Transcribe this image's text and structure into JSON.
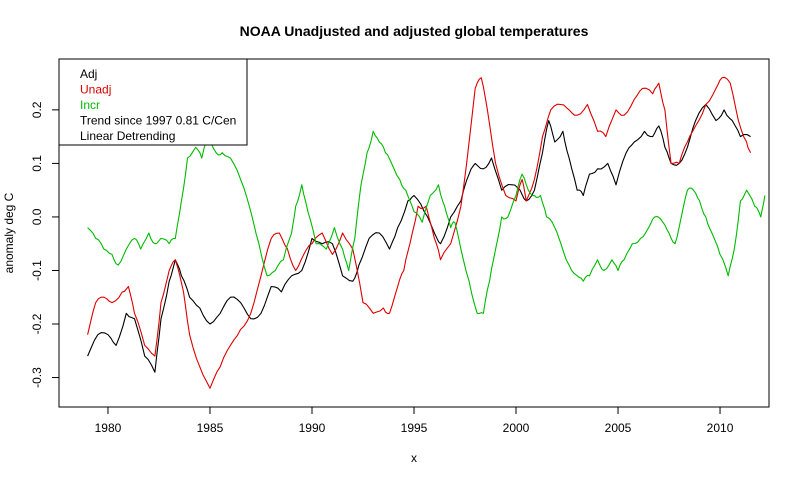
{
  "chart_data": {
    "type": "line",
    "title": "NOAA Unadjusted and adjusted global temperatures",
    "xlabel": "x",
    "ylabel": "anomaly deg C",
    "xlim": [
      1977.6,
      2012.4
    ],
    "ylim": [
      -0.355,
      0.295
    ],
    "x_ticks": [
      1980,
      1985,
      1990,
      1995,
      2000,
      2005,
      2010
    ],
    "x_tick_labels": [
      "1980",
      "1985",
      "1990",
      "1995",
      "2000",
      "2005",
      "2010"
    ],
    "y_ticks": [
      -0.3,
      -0.2,
      -0.1,
      0.0,
      0.1,
      0.2
    ],
    "y_tick_labels": [
      "-0.3",
      "-0.2",
      "-0.1",
      "0.0",
      "0.1",
      "0.2"
    ],
    "legend": {
      "position": "top-left",
      "entries": [
        {
          "label": "Adj",
          "color": "#000000"
        },
        {
          "label": "Unadj",
          "color": "#dd0000"
        },
        {
          "label": "Incr",
          "color": "#00bb00"
        },
        {
          "label": "Trend since 1997 0.81 C/Cen",
          "color": "#000000"
        },
        {
          "label": "Linear Detrending",
          "color": "#000000"
        }
      ]
    },
    "series": [
      {
        "name": "Adj",
        "color": "#000000",
        "points": [
          [
            1979.0,
            -0.26
          ],
          [
            1979.5,
            -0.22
          ],
          [
            1980.0,
            -0.22
          ],
          [
            1980.4,
            -0.24
          ],
          [
            1980.9,
            -0.18
          ],
          [
            1981.3,
            -0.19
          ],
          [
            1981.8,
            -0.26
          ],
          [
            1982.3,
            -0.29
          ],
          [
            1982.6,
            -0.19
          ],
          [
            1983.0,
            -0.12
          ],
          [
            1983.3,
            -0.08
          ],
          [
            1983.6,
            -0.11
          ],
          [
            1984.0,
            -0.15
          ],
          [
            1984.5,
            -0.17
          ],
          [
            1985.0,
            -0.2
          ],
          [
            1985.5,
            -0.18
          ],
          [
            1986.0,
            -0.15
          ],
          [
            1986.5,
            -0.16
          ],
          [
            1987.0,
            -0.19
          ],
          [
            1987.5,
            -0.18
          ],
          [
            1988.0,
            -0.13
          ],
          [
            1988.5,
            -0.14
          ],
          [
            1989.0,
            -0.11
          ],
          [
            1989.5,
            -0.1
          ],
          [
            1990.0,
            -0.04
          ],
          [
            1990.5,
            -0.05
          ],
          [
            1991.0,
            -0.05
          ],
          [
            1991.5,
            -0.11
          ],
          [
            1992.0,
            -0.12
          ],
          [
            1992.3,
            -0.09
          ],
          [
            1992.8,
            -0.04
          ],
          [
            1993.3,
            -0.03
          ],
          [
            1993.8,
            -0.06
          ],
          [
            1994.2,
            -0.02
          ],
          [
            1994.7,
            0.03
          ],
          [
            1995.0,
            0.04
          ],
          [
            1995.5,
            0.01
          ],
          [
            1996.0,
            -0.03
          ],
          [
            1996.3,
            -0.05
          ],
          [
            1996.8,
            0.0
          ],
          [
            1997.3,
            0.03
          ],
          [
            1997.7,
            0.08
          ],
          [
            1998.0,
            0.1
          ],
          [
            1998.4,
            0.09
          ],
          [
            1998.8,
            0.11
          ],
          [
            1999.3,
            0.05
          ],
          [
            1999.8,
            0.06
          ],
          [
            2000.2,
            0.05
          ],
          [
            2000.5,
            0.03
          ],
          [
            2000.9,
            0.05
          ],
          [
            2001.3,
            0.12
          ],
          [
            2001.6,
            0.18
          ],
          [
            2001.9,
            0.14
          ],
          [
            2002.3,
            0.16
          ],
          [
            2002.6,
            0.11
          ],
          [
            2003.0,
            0.05
          ],
          [
            2003.3,
            0.04
          ],
          [
            2003.6,
            0.08
          ],
          [
            2004.0,
            0.09
          ],
          [
            2004.5,
            0.1
          ],
          [
            2004.9,
            0.06
          ],
          [
            2005.4,
            0.12
          ],
          [
            2005.8,
            0.14
          ],
          [
            2006.3,
            0.16
          ],
          [
            2006.7,
            0.15
          ],
          [
            2007.0,
            0.17
          ],
          [
            2007.3,
            0.13
          ],
          [
            2007.6,
            0.1
          ],
          [
            2008.0,
            0.1
          ],
          [
            2008.4,
            0.13
          ],
          [
            2008.8,
            0.18
          ],
          [
            2009.3,
            0.21
          ],
          [
            2009.8,
            0.18
          ],
          [
            2010.2,
            0.2
          ],
          [
            2010.6,
            0.18
          ],
          [
            2011.0,
            0.15
          ],
          [
            2011.5,
            0.15
          ]
        ]
      },
      {
        "name": "Unadj",
        "color": "#dd0000",
        "points": [
          [
            1979.0,
            -0.22
          ],
          [
            1979.4,
            -0.16
          ],
          [
            1979.8,
            -0.15
          ],
          [
            1980.2,
            -0.16
          ],
          [
            1980.7,
            -0.14
          ],
          [
            1981.0,
            -0.13
          ],
          [
            1981.3,
            -0.18
          ],
          [
            1981.8,
            -0.24
          ],
          [
            1982.3,
            -0.26
          ],
          [
            1982.6,
            -0.16
          ],
          [
            1983.0,
            -0.1
          ],
          [
            1983.3,
            -0.08
          ],
          [
            1983.7,
            -0.14
          ],
          [
            1984.0,
            -0.22
          ],
          [
            1984.5,
            -0.28
          ],
          [
            1985.0,
            -0.32
          ],
          [
            1985.5,
            -0.28
          ],
          [
            1986.0,
            -0.24
          ],
          [
            1986.5,
            -0.21
          ],
          [
            1987.0,
            -0.18
          ],
          [
            1987.5,
            -0.11
          ],
          [
            1988.0,
            -0.04
          ],
          [
            1988.4,
            -0.03
          ],
          [
            1988.8,
            -0.06
          ],
          [
            1989.2,
            -0.1
          ],
          [
            1989.6,
            -0.07
          ],
          [
            1990.0,
            -0.05
          ],
          [
            1990.5,
            -0.03
          ],
          [
            1991.0,
            -0.07
          ],
          [
            1991.5,
            -0.03
          ],
          [
            1992.0,
            -0.06
          ],
          [
            1992.5,
            -0.16
          ],
          [
            1993.0,
            -0.18
          ],
          [
            1993.5,
            -0.17
          ],
          [
            1993.8,
            -0.18
          ],
          [
            1994.2,
            -0.13
          ],
          [
            1994.5,
            -0.1
          ],
          [
            1994.8,
            -0.05
          ],
          [
            1995.2,
            0.02
          ],
          [
            1995.6,
            0.02
          ],
          [
            1996.0,
            -0.04
          ],
          [
            1996.3,
            -0.08
          ],
          [
            1996.8,
            -0.05
          ],
          [
            1997.3,
            0.02
          ],
          [
            1997.7,
            0.14
          ],
          [
            1998.0,
            0.24
          ],
          [
            1998.3,
            0.26
          ],
          [
            1998.6,
            0.2
          ],
          [
            1999.0,
            0.1
          ],
          [
            1999.5,
            0.04
          ],
          [
            2000.0,
            0.03
          ],
          [
            2000.3,
            0.07
          ],
          [
            2000.5,
            0.03
          ],
          [
            2000.9,
            0.07
          ],
          [
            2001.3,
            0.15
          ],
          [
            2001.7,
            0.2
          ],
          [
            2002.2,
            0.21
          ],
          [
            2002.6,
            0.2
          ],
          [
            2003.0,
            0.19
          ],
          [
            2003.5,
            0.21
          ],
          [
            2004.0,
            0.16
          ],
          [
            2004.4,
            0.15
          ],
          [
            2004.9,
            0.2
          ],
          [
            2005.3,
            0.19
          ],
          [
            2005.8,
            0.22
          ],
          [
            2006.2,
            0.24
          ],
          [
            2006.7,
            0.23
          ],
          [
            2007.0,
            0.25
          ],
          [
            2007.3,
            0.2
          ],
          [
            2007.6,
            0.1
          ],
          [
            2008.0,
            0.1
          ],
          [
            2008.4,
            0.14
          ],
          [
            2008.8,
            0.17
          ],
          [
            2009.3,
            0.21
          ],
          [
            2009.8,
            0.24
          ],
          [
            2010.1,
            0.26
          ],
          [
            2010.5,
            0.25
          ],
          [
            2010.9,
            0.18
          ],
          [
            2011.3,
            0.14
          ],
          [
            2011.5,
            0.12
          ]
        ]
      },
      {
        "name": "Incr",
        "color": "#00bb00",
        "points": [
          [
            1979.0,
            -0.02
          ],
          [
            1979.4,
            -0.04
          ],
          [
            1979.8,
            -0.06
          ],
          [
            1980.2,
            -0.07
          ],
          [
            1980.5,
            -0.09
          ],
          [
            1980.9,
            -0.06
          ],
          [
            1981.3,
            -0.04
          ],
          [
            1981.6,
            -0.06
          ],
          [
            1982.0,
            -0.03
          ],
          [
            1982.3,
            -0.05
          ],
          [
            1982.6,
            -0.04
          ],
          [
            1983.0,
            -0.05
          ],
          [
            1983.3,
            -0.04
          ],
          [
            1983.6,
            0.03
          ],
          [
            1983.9,
            0.11
          ],
          [
            1984.3,
            0.13
          ],
          [
            1984.6,
            0.11
          ],
          [
            1984.9,
            0.15
          ],
          [
            1985.3,
            0.12
          ],
          [
            1985.6,
            0.12
          ],
          [
            1986.0,
            0.11
          ],
          [
            1986.5,
            0.07
          ],
          [
            1987.0,
            0.01
          ],
          [
            1987.4,
            -0.05
          ],
          [
            1987.8,
            -0.11
          ],
          [
            1988.2,
            -0.1
          ],
          [
            1988.6,
            -0.08
          ],
          [
            1989.0,
            -0.03
          ],
          [
            1989.2,
            0.02
          ],
          [
            1989.5,
            0.06
          ],
          [
            1989.8,
            0.01
          ],
          [
            1990.2,
            -0.05
          ],
          [
            1990.7,
            -0.06
          ],
          [
            1991.1,
            -0.02
          ],
          [
            1991.5,
            -0.06
          ],
          [
            1991.8,
            -0.1
          ],
          [
            1992.1,
            -0.04
          ],
          [
            1992.4,
            0.06
          ],
          [
            1992.7,
            0.12
          ],
          [
            1993.0,
            0.16
          ],
          [
            1993.3,
            0.14
          ],
          [
            1993.6,
            0.12
          ],
          [
            1993.9,
            0.1
          ],
          [
            1994.3,
            0.07
          ],
          [
            1994.6,
            0.05
          ],
          [
            1995.0,
            0.01
          ],
          [
            1995.4,
            -0.01
          ],
          [
            1995.8,
            0.04
          ],
          [
            1996.2,
            0.06
          ],
          [
            1996.5,
            0.02
          ],
          [
            1996.8,
            -0.02
          ],
          [
            1997.0,
            -0.01
          ],
          [
            1997.3,
            -0.06
          ],
          [
            1997.7,
            -0.12
          ],
          [
            1998.1,
            -0.18
          ],
          [
            1998.4,
            -0.18
          ],
          [
            1998.7,
            -0.12
          ],
          [
            1999.0,
            -0.06
          ],
          [
            1999.3,
            0.0
          ],
          [
            1999.6,
            0.0
          ],
          [
            2000.0,
            0.04
          ],
          [
            2000.3,
            0.08
          ],
          [
            2000.6,
            0.05
          ],
          [
            2000.9,
            0.04
          ],
          [
            2001.2,
            0.04
          ],
          [
            2001.5,
            0.0
          ],
          [
            2001.9,
            -0.02
          ],
          [
            2002.2,
            -0.05
          ],
          [
            2002.6,
            -0.09
          ],
          [
            2003.0,
            -0.11
          ],
          [
            2003.3,
            -0.12
          ],
          [
            2003.6,
            -0.11
          ],
          [
            2004.0,
            -0.08
          ],
          [
            2004.3,
            -0.1
          ],
          [
            2004.7,
            -0.08
          ],
          [
            2005.0,
            -0.1
          ],
          [
            2005.3,
            -0.08
          ],
          [
            2005.7,
            -0.05
          ],
          [
            2006.1,
            -0.04
          ],
          [
            2006.5,
            -0.02
          ],
          [
            2006.8,
            0.0
          ],
          [
            2007.2,
            -0.01
          ],
          [
            2007.5,
            -0.03
          ],
          [
            2007.8,
            -0.05
          ],
          [
            2008.1,
            0.0
          ],
          [
            2008.4,
            0.05
          ],
          [
            2008.7,
            0.05
          ],
          [
            2009.0,
            0.03
          ],
          [
            2009.3,
            0.0
          ],
          [
            2009.6,
            -0.03
          ],
          [
            2010.0,
            -0.07
          ],
          [
            2010.4,
            -0.11
          ],
          [
            2010.7,
            -0.06
          ],
          [
            2011.0,
            0.03
          ],
          [
            2011.3,
            0.05
          ],
          [
            2011.7,
            0.02
          ],
          [
            2012.0,
            0.0
          ],
          [
            2012.2,
            0.04
          ]
        ]
      }
    ]
  }
}
